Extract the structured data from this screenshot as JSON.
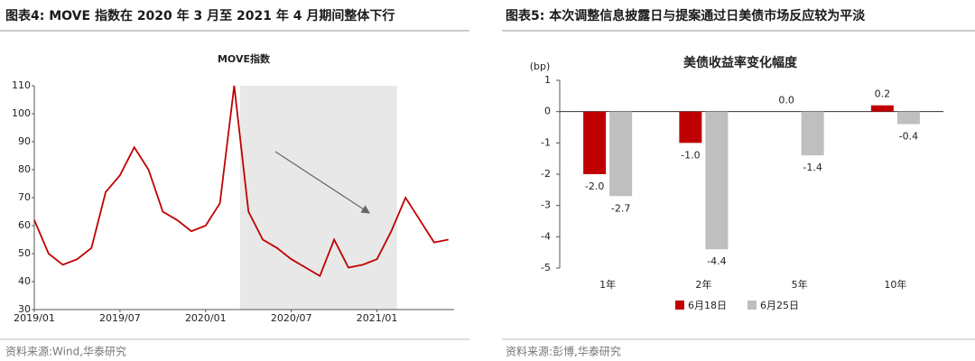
{
  "chart_data": [
    {
      "type": "line",
      "heading": "图表4:  MOVE 指数在 2020 年 3 月至 2021 年 4 月期间整体下行",
      "title": "MOVE指数",
      "source": "资料来源:Wind,华泰研究",
      "x": [
        "2019/01",
        "2019/02",
        "2019/03",
        "2019/04",
        "2019/05",
        "2019/06",
        "2019/07",
        "2019/08",
        "2019/09",
        "2019/10",
        "2019/11",
        "2019/12",
        "2020/01",
        "2020/02",
        "2020/03",
        "2020/04",
        "2020/05",
        "2020/06",
        "2020/07",
        "2020/08",
        "2020/09",
        "2020/10",
        "2020/11",
        "2020/12",
        "2021/01",
        "2021/02",
        "2021/03",
        "2021/04",
        "2021/05",
        "2021/06"
      ],
      "series": [
        {
          "color": "#c00000",
          "values": [
            62,
            50,
            46,
            48,
            52,
            72,
            78,
            88,
            80,
            65,
            62,
            58,
            60,
            68,
            110,
            65,
            55,
            52,
            48,
            45,
            42,
            55,
            45,
            46,
            48,
            58,
            70,
            62,
            54,
            55
          ]
        }
      ],
      "highlight": [
        "2020/03",
        "2021/02"
      ],
      "xticks": [
        "2019/01",
        "2019/07",
        "2020/01",
        "2020/07",
        "2021/01"
      ],
      "ylim": [
        30,
        110
      ],
      "yticks": [
        30,
        40,
        50,
        60,
        70,
        80,
        90,
        100,
        110
      ]
    },
    {
      "type": "bar",
      "heading": "图表5:  本次调整信息披露日与提案通过日美债市场反应较为平淡",
      "title": "美债收益率变化幅度",
      "ylabel": "(bp)",
      "source": "资料来源:彭博,华泰研究",
      "categories": [
        "1年",
        "2年",
        "5年",
        "10年"
      ],
      "series": [
        {
          "name": "6月18日",
          "color": "#c00000",
          "values": [
            -2.0,
            -1.0,
            0.0,
            0.2
          ],
          "value_labels": [
            "-2.0",
            "-1.0",
            "0.0",
            "0.2"
          ]
        },
        {
          "name": "6月25日",
          "color": "#bfbfbf",
          "values": [
            -2.7,
            -4.4,
            -1.4,
            -0.4
          ],
          "value_labels": [
            "-2.7",
            "-4.4",
            "-1.4",
            "-0.4"
          ]
        }
      ],
      "ylim": [
        -5,
        1
      ],
      "yticks": [
        -5,
        -4,
        -3,
        -2,
        -1,
        0,
        1
      ]
    }
  ]
}
